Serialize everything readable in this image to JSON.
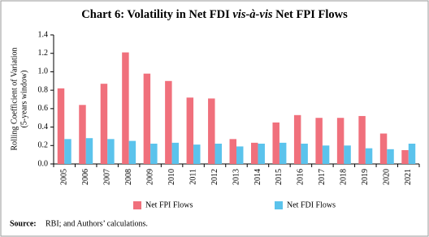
{
  "chart_data": {
    "type": "bar",
    "title": [
      "Chart 6: Volatility in Net FDI ",
      "vis-à-vis",
      " Net FPI Flows"
    ],
    "y_label": [
      "Rolling Coefficient of Variation",
      "(5-years window)"
    ],
    "categories": [
      "2005",
      "2006",
      "2007",
      "2008",
      "2009",
      "2010",
      "2011",
      "2012",
      "2013",
      "2014",
      "2015",
      "2016",
      "2017",
      "2018",
      "2019",
      "2020",
      "2021"
    ],
    "series": [
      {
        "name": "Net FPI Flows",
        "color": "#f0707c",
        "values": [
          0.82,
          0.64,
          0.87,
          1.21,
          0.98,
          0.9,
          0.72,
          0.71,
          0.27,
          0.23,
          0.45,
          0.53,
          0.5,
          0.5,
          0.52,
          0.33,
          0.15
        ]
      },
      {
        "name": "Net FDI Flows",
        "color": "#5bc3ec",
        "values": [
          0.27,
          0.28,
          0.27,
          0.25,
          0.22,
          0.23,
          0.21,
          0.22,
          0.19,
          0.22,
          0.23,
          0.22,
          0.2,
          0.2,
          0.17,
          0.16,
          0.22
        ]
      }
    ],
    "ylim": [
      0,
      1.4
    ],
    "yticks": [
      {
        "value": 0,
        "label": "0.0"
      },
      0.2,
      0.4,
      0.6,
      0.8,
      {
        "value": 1,
        "label": "1.0"
      },
      1.2,
      1.4
    ],
    "source_label": "Source:",
    "source": "RBI; and Authors’ calculations."
  }
}
